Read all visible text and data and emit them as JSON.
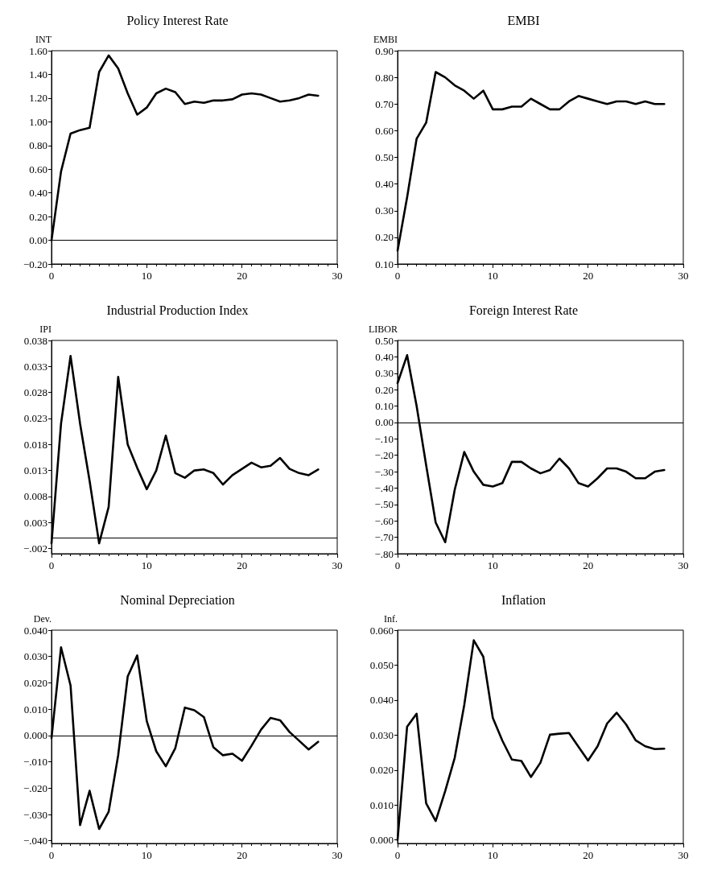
{
  "chart_data": [
    {
      "type": "line",
      "title": "Policy Interest Rate",
      "ylabel": "INT",
      "color": "#000000",
      "marker": "none",
      "grid": false,
      "line_style": "solid",
      "x": [
        0,
        1,
        2,
        3,
        4,
        5,
        6,
        7,
        8,
        9,
        10,
        11,
        12,
        13,
        14,
        15,
        16,
        17,
        18,
        19,
        20,
        21,
        22,
        23,
        24,
        25,
        26,
        27,
        28
      ],
      "values": [
        0,
        0.58,
        0.9,
        0.93,
        0.95,
        1.42,
        1.56,
        1.45,
        1.24,
        1.06,
        1.12,
        1.24,
        1.28,
        1.25,
        1.15,
        1.17,
        1.16,
        1.18,
        1.18,
        1.19,
        1.23,
        1.24,
        1.23,
        1.2,
        1.17,
        1.18,
        1.2,
        1.23,
        1.22
      ],
      "xlim": [
        0,
        30
      ],
      "xticks": [
        0,
        10,
        20,
        30
      ],
      "ylim": [
        -0.2,
        1.6
      ],
      "yticks": [
        {
          "value": -0.2,
          "label": "−0.20"
        },
        {
          "value": 0,
          "label": "0.00"
        },
        {
          "value": 0.2,
          "label": "0.20"
        },
        {
          "value": 0.4,
          "label": "0.40"
        },
        {
          "value": 0.6,
          "label": "0.60"
        },
        {
          "value": 0.8,
          "label": "0.80"
        },
        {
          "value": 1,
          "label": "1.00"
        },
        {
          "value": 1.2,
          "label": "1.20"
        },
        {
          "value": 1.4,
          "label": "1.40"
        },
        {
          "value": 1.6,
          "label": "1.60"
        }
      ],
      "ref_lines": [
        {
          "axis": "y",
          "value": 0
        }
      ]
    },
    {
      "type": "line",
      "title": "EMBI",
      "ylabel": "EMBI",
      "color": "#000000",
      "marker": "none",
      "grid": false,
      "line_style": "solid",
      "x": [
        0,
        1,
        2,
        3,
        4,
        5,
        6,
        7,
        8,
        9,
        10,
        11,
        12,
        13,
        14,
        15,
        16,
        17,
        18,
        19,
        20,
        21,
        22,
        23,
        24,
        25,
        26,
        27,
        28
      ],
      "values": [
        0.15,
        0.35,
        0.57,
        0.63,
        0.82,
        0.8,
        0.77,
        0.75,
        0.72,
        0.75,
        0.68,
        0.68,
        0.69,
        0.69,
        0.72,
        0.7,
        0.68,
        0.68,
        0.71,
        0.73,
        0.72,
        0.71,
        0.7,
        0.71,
        0.71,
        0.7,
        0.71,
        0.7,
        0.7
      ],
      "xlim": [
        0,
        30
      ],
      "xticks": [
        0,
        10,
        20,
        30
      ],
      "ylim": [
        0.1,
        0.9
      ],
      "yticks": [
        {
          "value": 0.1,
          "label": "0.10"
        },
        {
          "value": 0.2,
          "label": "0.20"
        },
        {
          "value": 0.3,
          "label": "0.30"
        },
        {
          "value": 0.4,
          "label": "0.40"
        },
        {
          "value": 0.5,
          "label": "0.50"
        },
        {
          "value": 0.6,
          "label": "0.60"
        },
        {
          "value": 0.7,
          "label": "0.70"
        },
        {
          "value": 0.8,
          "label": "0.80"
        },
        {
          "value": 0.9,
          "label": "0.90"
        }
      ]
    },
    {
      "type": "line",
      "title": "Industrial Production Index",
      "ylabel": "IPI",
      "color": "#000000",
      "marker": "none",
      "grid": false,
      "line_style": "solid",
      "x": [
        0,
        1,
        2,
        3,
        4,
        5,
        6,
        7,
        8,
        9,
        10,
        11,
        12,
        13,
        14,
        15,
        16,
        17,
        18,
        19,
        20,
        21,
        22,
        23,
        24,
        25,
        26,
        27,
        28
      ],
      "values": [
        -0.001,
        0.022,
        0.035,
        0.022,
        0.011,
        -0.001,
        0.006,
        0.031,
        0.018,
        0.0135,
        0.0094,
        0.013,
        0.0197,
        0.0125,
        0.0116,
        0.013,
        0.0132,
        0.0125,
        0.0103,
        0.0121,
        0.0133,
        0.0145,
        0.0136,
        0.0139,
        0.0154,
        0.0133,
        0.0125,
        0.0121,
        0.0132
      ],
      "xlim": [
        0,
        30
      ],
      "xticks": [
        0,
        10,
        20,
        30
      ],
      "ylim": [
        -0.003,
        0.038
      ],
      "yticks": [
        {
          "value": -0.002,
          "label": "−.002"
        },
        0.003,
        0.008,
        0.013,
        0.018,
        0.023,
        0.028,
        0.033,
        0.038
      ],
      "ref_lines": [
        {
          "axis": "y",
          "value": 0
        }
      ]
    },
    {
      "type": "line",
      "title": "Foreign Interest Rate",
      "ylabel": "LIBOR",
      "color": "#000000",
      "marker": "none",
      "grid": false,
      "line_style": "solid",
      "x": [
        0,
        1,
        2,
        3,
        4,
        5,
        6,
        7,
        8,
        9,
        10,
        11,
        12,
        13,
        14,
        15,
        16,
        17,
        18,
        19,
        20,
        21,
        22,
        23,
        24,
        25,
        26,
        27,
        28
      ],
      "values": [
        0.24,
        0.41,
        0.1,
        -0.26,
        -0.61,
        -0.73,
        -0.41,
        -0.18,
        -0.3,
        -0.38,
        -0.39,
        -0.37,
        -0.24,
        -0.24,
        -0.28,
        -0.31,
        -0.29,
        -0.22,
        -0.28,
        -0.37,
        -0.39,
        -0.34,
        -0.28,
        -0.28,
        -0.3,
        -0.34,
        -0.34,
        -0.3,
        -0.29
      ],
      "xlim": [
        0,
        30
      ],
      "xticks": [
        0,
        10,
        20,
        30
      ],
      "ylim": [
        -0.8,
        0.5
      ],
      "yticks": [
        {
          "value": -0.8,
          "label": "−.80"
        },
        {
          "value": -0.7,
          "label": "−.70"
        },
        {
          "value": -0.6,
          "label": "−.60"
        },
        {
          "value": -0.5,
          "label": "−.50"
        },
        {
          "value": -0.4,
          "label": "−.40"
        },
        {
          "value": -0.3,
          "label": "−.30"
        },
        {
          "value": -0.2,
          "label": "−.20"
        },
        {
          "value": -0.1,
          "label": "−.10"
        },
        {
          "value": 0,
          "label": "0.00"
        },
        {
          "value": 0.1,
          "label": "0.10"
        },
        {
          "value": 0.2,
          "label": "0.20"
        },
        {
          "value": 0.3,
          "label": "0.30"
        },
        {
          "value": 0.4,
          "label": "0.40"
        },
        {
          "value": 0.5,
          "label": "0.50"
        }
      ],
      "ref_lines": [
        {
          "axis": "y",
          "value": 0
        }
      ]
    },
    {
      "type": "line",
      "title": "Nominal Depreciation",
      "ylabel": "Dev.",
      "color": "#000000",
      "marker": "none",
      "grid": false,
      "line_style": "solid",
      "x": [
        0,
        1,
        2,
        3,
        4,
        5,
        6,
        7,
        8,
        9,
        10,
        11,
        12,
        13,
        14,
        15,
        16,
        17,
        18,
        19,
        20,
        21,
        22,
        23,
        24,
        25,
        26,
        27,
        28
      ],
      "values": [
        -0.001,
        0.0335,
        0.019,
        -0.034,
        -0.021,
        -0.0355,
        -0.029,
        -0.0075,
        0.0224,
        0.0304,
        0.0055,
        -0.006,
        -0.0117,
        -0.0048,
        0.0106,
        0.0096,
        0.007,
        -0.0045,
        -0.0075,
        -0.0069,
        -0.0096,
        -0.0039,
        0.0022,
        0.0067,
        0.0058,
        0.0013,
        -0.002,
        -0.0053,
        -0.0024
      ],
      "xlim": [
        0,
        30
      ],
      "xticks": [
        0,
        10,
        20,
        30
      ],
      "ylim": [
        -0.041,
        0.04
      ],
      "yticks": [
        {
          "value": -0.04,
          "label": "−.040"
        },
        {
          "value": -0.03,
          "label": "−.030"
        },
        {
          "value": -0.02,
          "label": "−.020"
        },
        {
          "value": -0.01,
          "label": "−.010"
        },
        {
          "value": 0,
          "label": "0.000"
        },
        {
          "value": 0.01,
          "label": "0.010"
        },
        {
          "value": 0.02,
          "label": "0.020"
        },
        {
          "value": 0.03,
          "label": "0.030"
        },
        {
          "value": 0.04,
          "label": "0.040"
        }
      ],
      "ref_lines": [
        {
          "axis": "y",
          "value": 0
        }
      ]
    },
    {
      "type": "line",
      "title": "Inflation",
      "ylabel": "Inf.",
      "color": "#000000",
      "marker": "none",
      "grid": false,
      "line_style": "solid",
      "x": [
        0,
        1,
        2,
        3,
        4,
        5,
        6,
        7,
        8,
        9,
        10,
        11,
        12,
        13,
        14,
        15,
        16,
        17,
        18,
        19,
        20,
        21,
        22,
        23,
        24,
        25,
        26,
        27,
        28
      ],
      "values": [
        0,
        0.0324,
        0.0361,
        0.0105,
        0.0054,
        0.014,
        0.0235,
        0.0386,
        0.0571,
        0.0524,
        0.0349,
        0.0284,
        0.023,
        0.0226,
        0.018,
        0.0221,
        0.0301,
        0.0304,
        0.0306,
        0.0266,
        0.0227,
        0.0268,
        0.0333,
        0.0364,
        0.033,
        0.0285,
        0.0268,
        0.026,
        0.0261
      ],
      "xlim": [
        0,
        30
      ],
      "xticks": [
        0,
        10,
        20,
        30
      ],
      "ylim": [
        -0.001,
        0.06
      ],
      "yticks": [
        {
          "value": 0,
          "label": "0.000"
        },
        {
          "value": 0.01,
          "label": "0.010"
        },
        {
          "value": 0.02,
          "label": "0.020"
        },
        {
          "value": 0.03,
          "label": "0.030"
        },
        {
          "value": 0.04,
          "label": "0.040"
        },
        {
          "value": 0.05,
          "label": "0.050"
        },
        {
          "value": 0.06,
          "label": "0.060"
        }
      ]
    }
  ]
}
